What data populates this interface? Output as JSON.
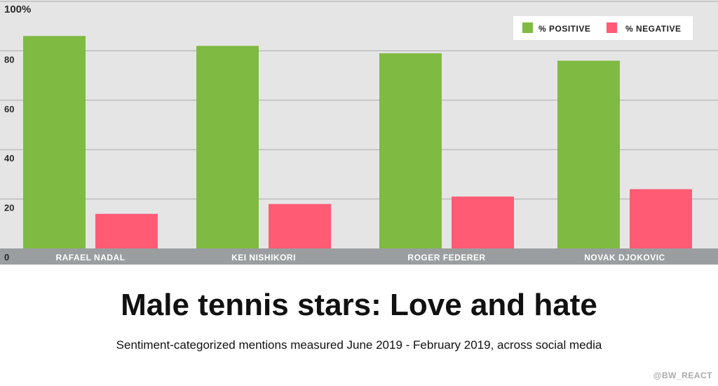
{
  "chart_data": {
    "type": "bar",
    "categories": [
      "RAFAEL NADAL",
      "KEI NISHIKORI",
      "ROGER FEDERER",
      "NOVAK DJOKOVIC"
    ],
    "series": [
      {
        "name": "% POSITIVE",
        "values": [
          86,
          82,
          79,
          76
        ],
        "color": "#7fba42"
      },
      {
        "name": "% NEGATIVE",
        "values": [
          14,
          18,
          21,
          24
        ],
        "color": "#ff5b74"
      }
    ],
    "yticks": [
      "0",
      "20",
      "40",
      "60",
      "80",
      "100%"
    ],
    "ylim": [
      0,
      100
    ],
    "grid": true,
    "legend_position": "top-right",
    "title": "Male tennis stars: Love and hate",
    "subtitle": "Sentiment-categorized mentions measured June 2019 - February 2019, across social media",
    "xlabel": "",
    "ylabel": ""
  },
  "credit": "@BW_REACT",
  "colors": {
    "plot_background": "#e5e5e5",
    "axis_band": "#9a9ea0",
    "gridline": "#aaaaaa"
  }
}
